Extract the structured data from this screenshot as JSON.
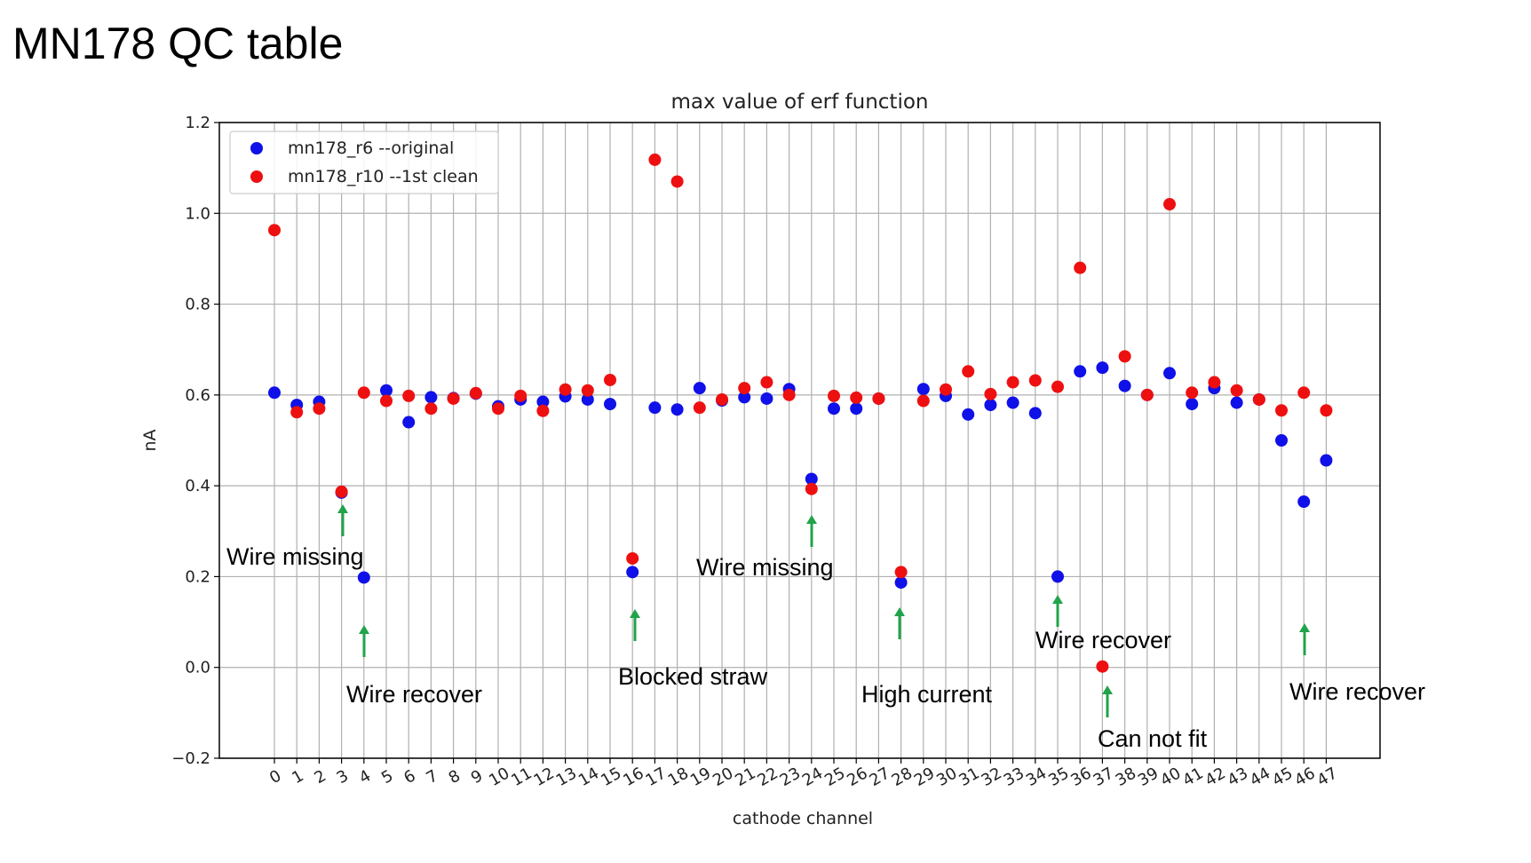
{
  "slide": {
    "title": "MN178 QC table"
  },
  "chart_data": {
    "type": "scatter",
    "title": "max value of erf function",
    "xlabel": "cathode channel",
    "ylabel": "nA",
    "ylim": [
      -0.2,
      1.2
    ],
    "yticks": [
      -0.2,
      0.0,
      0.2,
      0.4,
      0.6,
      0.8,
      1.0,
      1.2
    ],
    "ytick_labels": [
      "−0.2",
      "0.0",
      "0.2",
      "0.4",
      "0.6",
      "0.8",
      "1.0",
      "1.2"
    ],
    "x": [
      0,
      1,
      2,
      3,
      4,
      5,
      6,
      7,
      8,
      9,
      10,
      11,
      12,
      13,
      14,
      15,
      16,
      17,
      18,
      19,
      20,
      21,
      22,
      23,
      24,
      25,
      26,
      27,
      28,
      29,
      30,
      31,
      32,
      33,
      34,
      35,
      36,
      37,
      38,
      39,
      40,
      41,
      42,
      43,
      44,
      45,
      46,
      47
    ],
    "grid": true,
    "legend_position": "top-left",
    "series": [
      {
        "name": "mn178_r6 --original",
        "color": "#1010e8",
        "values": [
          0.605,
          0.578,
          0.585,
          0.385,
          0.198,
          0.61,
          0.54,
          0.595,
          0.593,
          0.603,
          0.575,
          0.59,
          0.585,
          0.597,
          0.59,
          0.58,
          0.21,
          0.572,
          0.568,
          0.615,
          0.588,
          0.595,
          0.592,
          0.613,
          0.415,
          0.57,
          0.57,
          0.592,
          0.187,
          0.613,
          0.598,
          0.557,
          0.578,
          0.583,
          0.56,
          0.2,
          0.652,
          0.66,
          0.62,
          0.6,
          0.648,
          0.58,
          0.615,
          0.583,
          0.59,
          0.5,
          0.365,
          0.456
        ]
      },
      {
        "name": "mn178_r10 --1st clean",
        "color": "#ee1010",
        "values": [
          0.963,
          0.562,
          0.57,
          0.387,
          0.605,
          0.587,
          0.598,
          0.57,
          0.592,
          0.604,
          0.57,
          0.598,
          0.565,
          0.612,
          0.61,
          0.633,
          0.24,
          1.118,
          1.07,
          0.572,
          0.59,
          0.615,
          0.628,
          0.6,
          0.393,
          0.598,
          0.594,
          0.592,
          0.21,
          0.587,
          0.612,
          0.652,
          0.602,
          0.628,
          0.632,
          0.618,
          0.88,
          0.002,
          0.685,
          0.6,
          1.02,
          0.605,
          0.628,
          0.61,
          0.59,
          0.566,
          0.605,
          0.566
        ]
      }
    ],
    "annotations": [
      {
        "text": "Wire missing",
        "channel": 3,
        "arrow": "up"
      },
      {
        "text": "Wire recover",
        "channel": 4,
        "arrow": "up"
      },
      {
        "text": "Blocked straw",
        "channel": 16,
        "arrow": "up"
      },
      {
        "text": "Wire missing",
        "channel": 24,
        "arrow": "up"
      },
      {
        "text": "High current",
        "channel": 28,
        "arrow": "up"
      },
      {
        "text": "Wire recover",
        "channel": 35,
        "arrow": "up"
      },
      {
        "text": "Can not fit",
        "channel": 37,
        "arrow": "up"
      },
      {
        "text": "Wire recover",
        "channel": 46,
        "arrow": "up"
      }
    ],
    "arrow_color": "#21a34a"
  }
}
